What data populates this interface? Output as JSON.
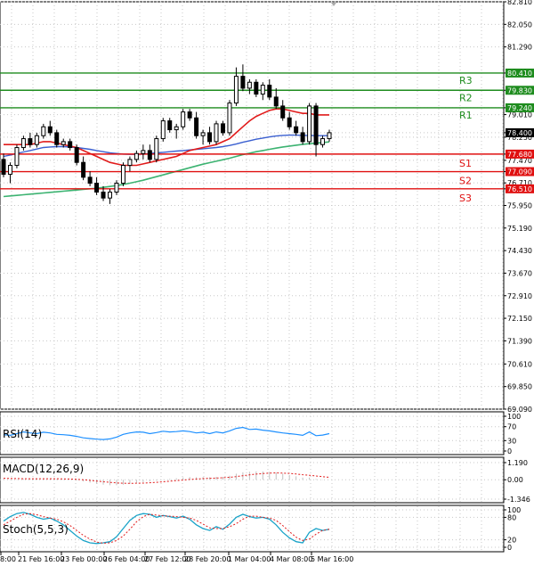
{
  "chart_data": {
    "type": "candlestick",
    "price_axis": {
      "ticks": [
        82.81,
        82.05,
        81.29,
        80.41,
        79.83,
        79.24,
        79.01,
        78.4,
        78.25,
        77.68,
        77.47,
        77.09,
        76.71,
        76.51,
        75.95,
        75.19,
        74.43,
        73.67,
        72.91,
        72.15,
        71.39,
        70.61,
        69.85,
        69.09
      ],
      "range": [
        69.09,
        82.81
      ]
    },
    "time_axis": {
      "labels": [
        "8:00",
        "21 Feb 16:00",
        "23 Feb 00:00",
        "26 Feb 04:00",
        "27 Feb 12:00",
        "28 Feb 20:00",
        "1 Mar 04:00",
        "4 Mar 08:00",
        "5 Mar 16:00"
      ]
    },
    "current_price": "78.400",
    "levels": [
      {
        "name": "R3",
        "value": "80.410",
        "type": "resistance"
      },
      {
        "name": "R2",
        "value": "79.830",
        "type": "resistance"
      },
      {
        "name": "R1",
        "value": "79.240",
        "type": "resistance"
      },
      {
        "name": "S1",
        "value": "77.680",
        "type": "support"
      },
      {
        "name": "S2",
        "value": "77.090",
        "type": "support"
      },
      {
        "name": "S3",
        "value": "76.510",
        "type": "support"
      }
    ],
    "candles": [
      [
        77.5,
        77.7,
        76.9,
        77.0
      ],
      [
        77.0,
        77.4,
        76.7,
        77.3
      ],
      [
        77.3,
        78.0,
        77.2,
        77.9
      ],
      [
        77.9,
        78.3,
        77.8,
        78.2
      ],
      [
        78.2,
        78.4,
        77.9,
        78.0
      ],
      [
        78.0,
        78.4,
        77.9,
        78.3
      ],
      [
        78.3,
        78.7,
        78.2,
        78.6
      ],
      [
        78.6,
        78.8,
        78.3,
        78.4
      ],
      [
        78.4,
        78.5,
        77.9,
        78.0
      ],
      [
        78.0,
        78.2,
        77.9,
        78.1
      ],
      [
        78.1,
        78.2,
        77.8,
        77.9
      ],
      [
        77.9,
        78.0,
        77.3,
        77.4
      ],
      [
        77.4,
        77.6,
        76.8,
        76.9
      ],
      [
        76.9,
        77.1,
        76.6,
        76.7
      ],
      [
        76.7,
        76.9,
        76.3,
        76.4
      ],
      [
        76.4,
        76.6,
        76.1,
        76.2
      ],
      [
        76.2,
        76.5,
        76.0,
        76.4
      ],
      [
        76.4,
        76.8,
        76.3,
        76.7
      ],
      [
        76.7,
        77.4,
        76.6,
        77.3
      ],
      [
        77.3,
        77.6,
        77.1,
        77.5
      ],
      [
        77.5,
        77.8,
        77.4,
        77.7
      ],
      [
        77.7,
        78.0,
        77.5,
        77.8
      ],
      [
        77.8,
        78.0,
        77.4,
        77.5
      ],
      [
        77.5,
        78.3,
        77.4,
        78.2
      ],
      [
        78.2,
        78.9,
        78.1,
        78.8
      ],
      [
        78.8,
        78.9,
        78.4,
        78.5
      ],
      [
        78.5,
        78.7,
        78.2,
        78.6
      ],
      [
        78.6,
        79.2,
        78.5,
        79.1
      ],
      [
        79.1,
        79.2,
        78.8,
        78.9
      ],
      [
        78.9,
        79.1,
        78.2,
        78.3
      ],
      [
        78.3,
        78.5,
        78.0,
        78.4
      ],
      [
        78.4,
        78.6,
        78.0,
        78.1
      ],
      [
        78.1,
        78.8,
        78.0,
        78.7
      ],
      [
        78.7,
        78.8,
        78.3,
        78.4
      ],
      [
        78.4,
        79.5,
        78.3,
        79.4
      ],
      [
        79.4,
        80.6,
        79.3,
        80.3
      ],
      [
        80.3,
        80.7,
        79.8,
        79.9
      ],
      [
        79.9,
        80.2,
        79.7,
        80.1
      ],
      [
        80.1,
        80.2,
        79.6,
        79.7
      ],
      [
        79.7,
        80.1,
        79.5,
        80.0
      ],
      [
        80.0,
        80.2,
        79.5,
        79.6
      ],
      [
        79.6,
        79.9,
        79.2,
        79.3
      ],
      [
        79.3,
        79.5,
        78.8,
        78.9
      ],
      [
        78.9,
        79.1,
        78.5,
        78.6
      ],
      [
        78.6,
        78.8,
        78.3,
        78.4
      ],
      [
        78.4,
        78.6,
        78.0,
        78.1
      ],
      [
        78.1,
        79.4,
        78.0,
        79.3
      ],
      [
        79.3,
        79.4,
        77.6,
        78.0
      ],
      [
        78.0,
        78.3,
        77.9,
        78.2
      ],
      [
        78.2,
        78.5,
        78.1,
        78.4
      ]
    ],
    "ma_red": [
      78.0,
      78.0,
      78.0,
      78.0,
      78.0,
      78.05,
      78.1,
      78.1,
      78.05,
      78.0,
      77.95,
      77.9,
      77.8,
      77.7,
      77.6,
      77.5,
      77.4,
      77.35,
      77.3,
      77.3,
      77.3,
      77.35,
      77.4,
      77.45,
      77.5,
      77.55,
      77.6,
      77.7,
      77.8,
      77.85,
      77.9,
      77.95,
      78.0,
      78.1,
      78.2,
      78.4,
      78.6,
      78.8,
      78.95,
      79.05,
      79.15,
      79.2,
      79.2,
      79.15,
      79.1,
      79.05,
      79.05,
      79.0,
      79.0,
      79.0
    ],
    "ma_blue": [
      77.6,
      77.65,
      77.7,
      77.75,
      77.8,
      77.85,
      77.9,
      77.92,
      77.93,
      77.93,
      77.92,
      77.9,
      77.87,
      77.84,
      77.8,
      77.76,
      77.72,
      77.7,
      77.68,
      77.67,
      77.67,
      77.68,
      77.7,
      77.72,
      77.74,
      77.76,
      77.78,
      77.8,
      77.82,
      77.84,
      77.86,
      77.88,
      77.9,
      77.93,
      77.97,
      78.02,
      78.08,
      78.13,
      78.18,
      78.22,
      78.26,
      78.29,
      78.31,
      78.32,
      78.32,
      78.31,
      78.31,
      78.3,
      78.3,
      78.3
    ],
    "ma_green": [
      76.25,
      76.27,
      76.29,
      76.31,
      76.33,
      76.35,
      76.37,
      76.39,
      76.41,
      76.43,
      76.45,
      76.47,
      76.49,
      76.51,
      76.53,
      76.56,
      76.59,
      76.62,
      76.66,
      76.7,
      76.75,
      76.8,
      76.86,
      76.92,
      76.98,
      77.04,
      77.1,
      77.16,
      77.22,
      77.28,
      77.34,
      77.39,
      77.44,
      77.49,
      77.54,
      77.6,
      77.66,
      77.71,
      77.76,
      77.8,
      77.84,
      77.88,
      77.92,
      77.95,
      77.98,
      78.01,
      78.03,
      78.05,
      78.07,
      78.09
    ],
    "panels": [
      {
        "name": "RSI(14)",
        "ticks": [
          "100",
          "70",
          "30",
          "0"
        ],
        "range": [
          0,
          100
        ],
        "values": [
          47,
          45,
          50,
          55,
          52,
          50,
          54,
          52,
          48,
          47,
          45,
          42,
          38,
          36,
          34,
          33,
          35,
          40,
          48,
          52,
          55,
          54,
          50,
          53,
          57,
          55,
          56,
          58,
          56,
          52,
          54,
          50,
          55,
          52,
          58,
          65,
          68,
          62,
          63,
          60,
          58,
          55,
          52,
          50,
          48,
          45,
          55,
          44,
          46,
          50
        ]
      },
      {
        "name": "MACD(12,26,9)",
        "ticks": [
          "1.190",
          "0.00",
          "-1.346"
        ],
        "range": [
          -1.346,
          1.19
        ],
        "macd": [
          0.05,
          0.02,
          0.03,
          0.05,
          0.05,
          0.06,
          0.08,
          0.07,
          0.05,
          0.03,
          0.0,
          -0.05,
          -0.12,
          -0.2,
          -0.28,
          -0.34,
          -0.38,
          -0.38,
          -0.34,
          -0.28,
          -0.22,
          -0.16,
          -0.12,
          -0.06,
          0.02,
          0.06,
          0.1,
          0.16,
          0.19,
          0.18,
          0.18,
          0.17,
          0.2,
          0.2,
          0.28,
          0.42,
          0.52,
          0.56,
          0.58,
          0.58,
          0.55,
          0.5,
          0.42,
          0.33,
          0.24,
          0.15,
          0.15,
          0.05,
          0.02,
          0.0
        ],
        "signal": [
          0.1,
          0.09,
          0.08,
          0.07,
          0.07,
          0.07,
          0.07,
          0.07,
          0.07,
          0.06,
          0.05,
          0.03,
          0.0,
          -0.04,
          -0.09,
          -0.14,
          -0.18,
          -0.22,
          -0.24,
          -0.25,
          -0.24,
          -0.23,
          -0.21,
          -0.18,
          -0.14,
          -0.1,
          -0.06,
          -0.02,
          0.02,
          0.05,
          0.08,
          0.1,
          0.12,
          0.14,
          0.17,
          0.22,
          0.28,
          0.34,
          0.39,
          0.43,
          0.46,
          0.47,
          0.46,
          0.44,
          0.4,
          0.35,
          0.31,
          0.26,
          0.21,
          0.17
        ]
      },
      {
        "name": "Stoch(5,5,3)",
        "ticks": [
          "100",
          "80",
          "20",
          "0"
        ],
        "range": [
          0,
          100
        ],
        "k": [
          70,
          82,
          90,
          93,
          88,
          80,
          75,
          78,
          70,
          60,
          45,
          30,
          18,
          12,
          10,
          12,
          15,
          28,
          50,
          72,
          85,
          90,
          88,
          80,
          85,
          82,
          78,
          83,
          75,
          60,
          50,
          45,
          55,
          48,
          62,
          80,
          88,
          82,
          78,
          80,
          75,
          60,
          40,
          25,
          15,
          12,
          40,
          50,
          45,
          48
        ],
        "d": [
          60,
          70,
          80,
          88,
          90,
          87,
          82,
          78,
          75,
          68,
          58,
          45,
          32,
          22,
          14,
          11,
          12,
          18,
          30,
          48,
          68,
          82,
          88,
          86,
          84,
          83,
          82,
          80,
          78,
          72,
          62,
          52,
          50,
          50,
          55,
          63,
          75,
          83,
          83,
          80,
          78,
          72,
          58,
          42,
          27,
          18,
          22,
          35,
          45,
          48
        ]
      }
    ]
  }
}
